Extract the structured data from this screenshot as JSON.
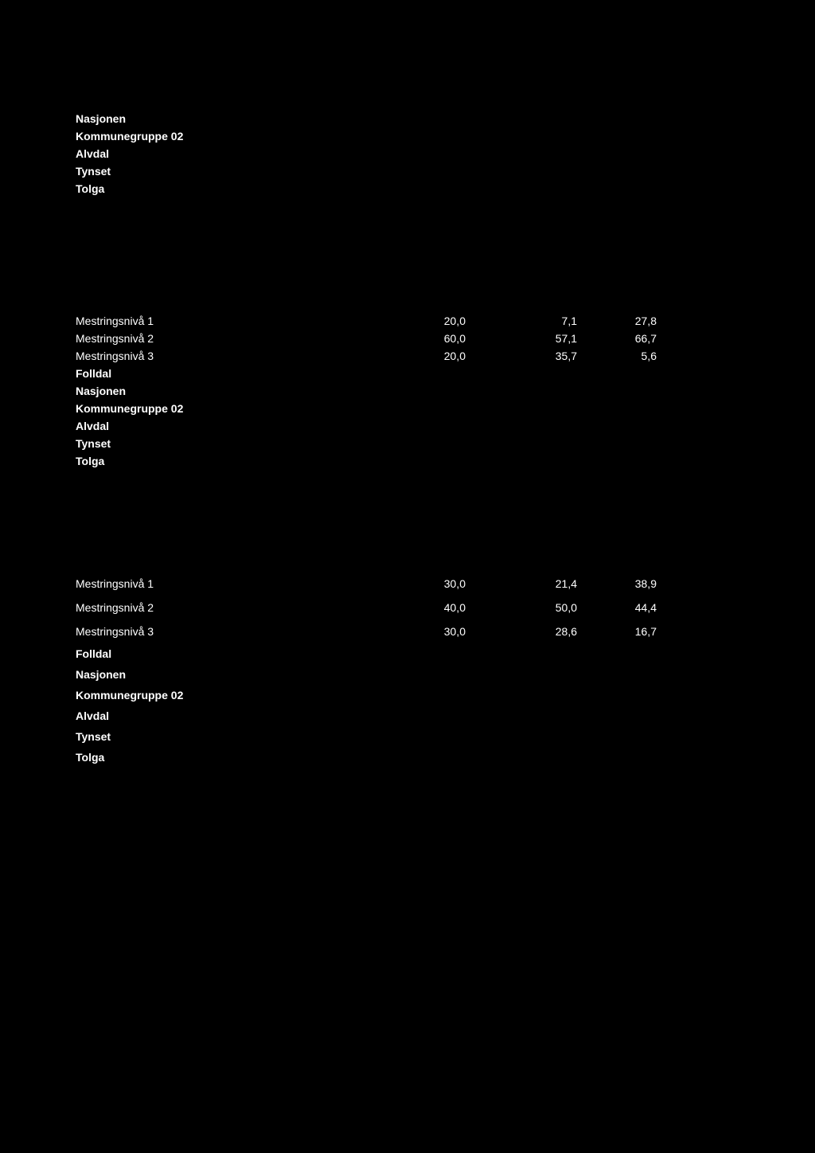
{
  "block1": {
    "items": [
      "Nasjonen",
      "Kommunegruppe 02",
      "Alvdal",
      "Tynset",
      "Tolga"
    ]
  },
  "block2": {
    "dataRows": [
      {
        "label": "Mestringsnivå 1",
        "v1": "20,0",
        "v2": "7,1",
        "v3": "27,8"
      },
      {
        "label": "Mestringsnivå 2",
        "v1": "60,0",
        "v2": "57,1",
        "v3": "66,7"
      },
      {
        "label": "Mestringsnivå 3",
        "v1": "20,0",
        "v2": "35,7",
        "v3": "5,6"
      }
    ],
    "items": [
      "Folldal",
      "Nasjonen",
      "Kommunegruppe 02",
      "Alvdal",
      "Tynset",
      "Tolga"
    ]
  },
  "block3": {
    "dataRows": [
      {
        "label": "Mestringsnivå 1",
        "v1": "30,0",
        "v2": "21,4",
        "v3": "38,9"
      },
      {
        "label": "Mestringsnivå 2",
        "v1": "40,0",
        "v2": "50,0",
        "v3": "44,4"
      },
      {
        "label": "Mestringsnivå 3",
        "v1": "30,0",
        "v2": "28,6",
        "v3": "16,7"
      }
    ],
    "items": [
      "Folldal",
      "Nasjonen",
      "Kommunegruppe 02",
      "Alvdal",
      "Tynset",
      "Tolga"
    ]
  }
}
